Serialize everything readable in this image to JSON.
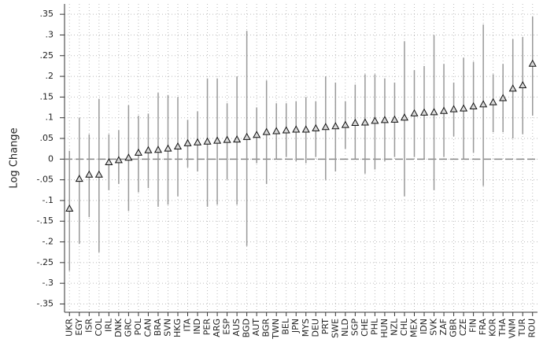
{
  "chart_data": {
    "type": "errorbar",
    "ylabel": "Log Change",
    "categories": [
      "UKR",
      "EGY",
      "ISR",
      "COL",
      "IRL",
      "DNK",
      "GRC",
      "POL",
      "CAN",
      "BRA",
      "SVN",
      "HKG",
      "ITA",
      "IND",
      "PER",
      "ARG",
      "ESP",
      "AUS",
      "BGD",
      "AUT",
      "BGR",
      "TWN",
      "BEL",
      "JPN",
      "MYS",
      "DEU",
      "PRT",
      "SWE",
      "NLD",
      "SGP",
      "CHE",
      "PHL",
      "HUN",
      "NZL",
      "CHL",
      "MEX",
      "IDN",
      "SVK",
      "ZAF",
      "GBR",
      "CZE",
      "FIN",
      "FRA",
      "KOR",
      "THA",
      "VNM",
      "TUR",
      "ROU"
    ],
    "values": [
      -0.12,
      -0.048,
      -0.038,
      -0.038,
      -0.008,
      -0.003,
      0.003,
      0.015,
      0.021,
      0.022,
      0.025,
      0.03,
      0.038,
      0.04,
      0.042,
      0.044,
      0.046,
      0.047,
      0.053,
      0.058,
      0.065,
      0.067,
      0.069,
      0.071,
      0.071,
      0.074,
      0.077,
      0.079,
      0.082,
      0.087,
      0.088,
      0.092,
      0.094,
      0.095,
      0.1,
      0.11,
      0.112,
      0.113,
      0.116,
      0.12,
      0.122,
      0.127,
      0.132,
      0.137,
      0.147,
      0.17,
      0.178,
      0.23
    ],
    "low": [
      -0.27,
      -0.205,
      -0.14,
      -0.225,
      -0.075,
      -0.06,
      -0.125,
      -0.08,
      -0.07,
      -0.115,
      -0.11,
      -0.09,
      -0.02,
      -0.03,
      -0.115,
      -0.11,
      -0.05,
      -0.11,
      -0.21,
      -0.01,
      -0.06,
      0.0,
      0.005,
      -0.005,
      -0.01,
      0.005,
      -0.05,
      -0.03,
      0.025,
      0.0,
      -0.035,
      -0.025,
      -0.005,
      0.005,
      -0.09,
      0.005,
      0.0,
      -0.075,
      0.005,
      0.055,
      0.0,
      0.015,
      -0.065,
      0.065,
      0.065,
      0.05,
      0.06,
      0.105
    ],
    "high": [
      0.02,
      0.1,
      0.06,
      0.145,
      0.06,
      0.07,
      0.13,
      0.105,
      0.11,
      0.16,
      0.155,
      0.15,
      0.095,
      0.115,
      0.195,
      0.195,
      0.135,
      0.2,
      0.31,
      0.125,
      0.19,
      0.135,
      0.135,
      0.14,
      0.15,
      0.14,
      0.2,
      0.185,
      0.14,
      0.18,
      0.205,
      0.205,
      0.195,
      0.185,
      0.285,
      0.215,
      0.225,
      0.3,
      0.23,
      0.185,
      0.245,
      0.235,
      0.325,
      0.205,
      0.23,
      0.29,
      0.295,
      0.345
    ],
    "ylim": [
      -0.37,
      0.375
    ],
    "yticks": [
      {
        "value": 0.35,
        "label": ".35"
      },
      {
        "value": 0.3,
        "label": ".3"
      },
      {
        "value": 0.25,
        "label": ".25"
      },
      {
        "value": 0.2,
        "label": ".2"
      },
      {
        "value": 0.15,
        "label": ".15"
      },
      {
        "value": 0.1,
        "label": ".1"
      },
      {
        "value": 0.05,
        "label": ".05"
      },
      0,
      {
        "value": -0.05,
        "label": "-.05"
      },
      {
        "value": -0.1,
        "label": "-.1"
      },
      {
        "value": -0.15,
        "label": "-.15"
      },
      {
        "value": -0.2,
        "label": "-.2"
      },
      {
        "value": -0.25,
        "label": "-.25"
      },
      {
        "value": -0.3,
        "label": "-.3"
      },
      {
        "value": -0.35,
        "label": "-.35"
      }
    ],
    "hline": 0,
    "grid": true,
    "marker_color": "#d9d9d9",
    "bar_color": "#999999"
  }
}
